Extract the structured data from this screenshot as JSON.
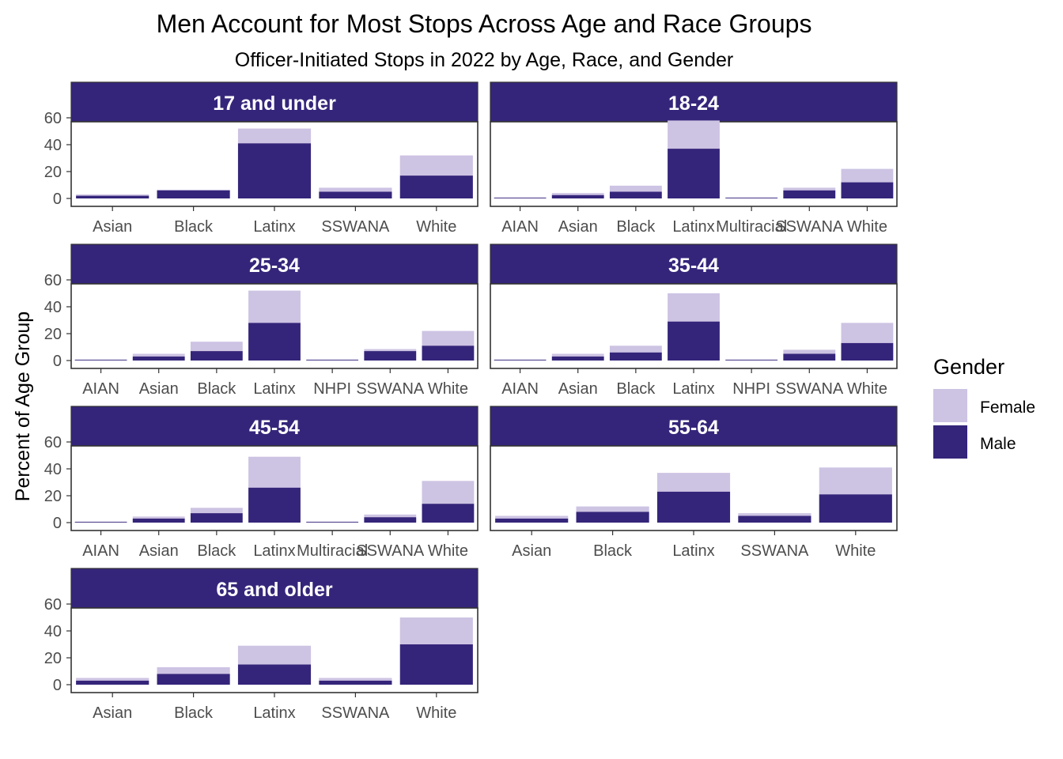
{
  "colors": {
    "male": "#35257a",
    "female": "#cdc3e3",
    "strip": "#35257a",
    "panel_border": "#333333"
  },
  "chart_data": {
    "type": "bar",
    "stacked": true,
    "title": "Men Account for Most Stops Across Age and Race Groups",
    "subtitle": "Officer-Initiated Stops in 2022 by Age, Race, and Gender",
    "xlabel": "",
    "ylabel": "Percent of Age Group",
    "ylim": [
      0,
      82
    ],
    "yticks": [
      0,
      20,
      40,
      60
    ],
    "grid": false,
    "legend": {
      "title": "Gender",
      "position": "right",
      "entries": [
        {
          "key": "female",
          "label": "Female"
        },
        {
          "key": "male",
          "label": "Male"
        }
      ]
    },
    "facets": [
      {
        "label": "17 and under",
        "categories": [
          "Asian",
          "Black",
          "Latinx",
          "SSWANA",
          "White"
        ],
        "series": [
          {
            "name": "Male",
            "key": "male",
            "values": [
              2,
              6,
              41,
              5,
              17
            ]
          },
          {
            "name": "Female",
            "key": "female",
            "values": [
              1,
              0.5,
              11,
              3,
              15
            ]
          }
        ]
      },
      {
        "label": "18-24",
        "categories": [
          "AIAN",
          "Asian",
          "Black",
          "Latinx",
          "Multiracial",
          "SSWANA",
          "White"
        ],
        "series": [
          {
            "name": "Male",
            "key": "male",
            "values": [
              0.5,
              2.5,
              5,
              37,
              0.5,
              6,
              12
            ]
          },
          {
            "name": "Female",
            "key": "female",
            "values": [
              0.3,
              1.5,
              4.5,
              21,
              0.3,
              2,
              10
            ]
          }
        ]
      },
      {
        "label": "25-34",
        "categories": [
          "AIAN",
          "Asian",
          "Black",
          "Latinx",
          "NHPI",
          "SSWANA",
          "White"
        ],
        "series": [
          {
            "name": "Male",
            "key": "male",
            "values": [
              0.5,
              3,
              7,
              28,
              0.5,
              7,
              11
            ]
          },
          {
            "name": "Female",
            "key": "female",
            "values": [
              0.3,
              2,
              7,
              24,
              0.3,
              1.5,
              11
            ]
          }
        ]
      },
      {
        "label": "35-44",
        "categories": [
          "AIAN",
          "Asian",
          "Black",
          "Latinx",
          "NHPI",
          "SSWANA",
          "White"
        ],
        "series": [
          {
            "name": "Male",
            "key": "male",
            "values": [
              0.5,
              3,
              6,
              29,
              0.5,
              5,
              13
            ]
          },
          {
            "name": "Female",
            "key": "female",
            "values": [
              0.3,
              2,
              5,
              21,
              0.3,
              3,
              15
            ]
          }
        ]
      },
      {
        "label": "45-54",
        "categories": [
          "AIAN",
          "Asian",
          "Black",
          "Latinx",
          "Multiracial",
          "SSWANA",
          "White"
        ],
        "series": [
          {
            "name": "Male",
            "key": "male",
            "values": [
              0.5,
              3,
              7,
              26,
              0.5,
              4,
              14
            ]
          },
          {
            "name": "Female",
            "key": "female",
            "values": [
              0.3,
              1.5,
              4,
              23,
              0.3,
              2,
              17
            ]
          }
        ]
      },
      {
        "label": "55-64",
        "categories": [
          "Asian",
          "Black",
          "Latinx",
          "SSWANA",
          "White"
        ],
        "series": [
          {
            "name": "Male",
            "key": "male",
            "values": [
              3,
              8,
              23,
              5,
              21
            ]
          },
          {
            "name": "Female",
            "key": "female",
            "values": [
              2,
              4,
              14,
              2,
              20
            ]
          }
        ]
      },
      {
        "label": "65 and older",
        "categories": [
          "Asian",
          "Black",
          "Latinx",
          "SSWANA",
          "White"
        ],
        "series": [
          {
            "name": "Male",
            "key": "male",
            "values": [
              3,
              8,
              15,
              3,
              30
            ]
          },
          {
            "name": "Female",
            "key": "female",
            "values": [
              2,
              5,
              14,
              2,
              20
            ]
          }
        ]
      }
    ]
  }
}
